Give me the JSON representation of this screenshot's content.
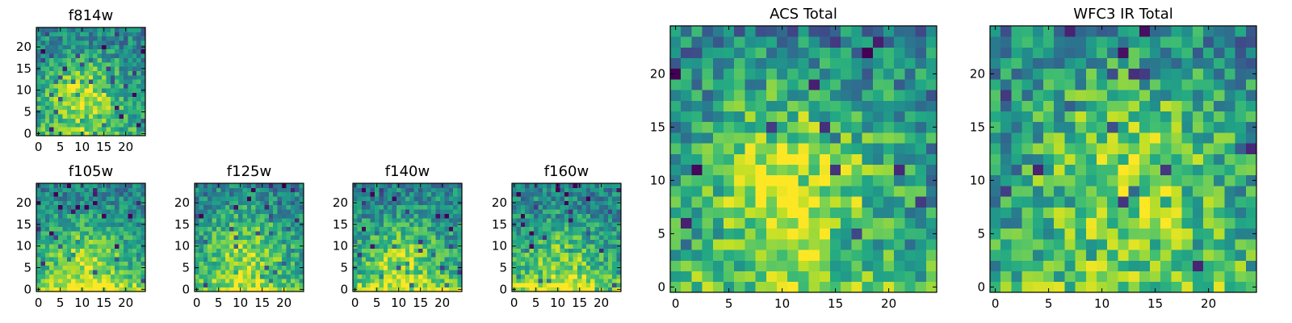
{
  "chart_data": [
    {
      "id": "f814w",
      "type": "heatmap",
      "title": "f814w",
      "grid_size": 25,
      "xticks": [
        0,
        5,
        10,
        15,
        20
      ],
      "yticks": [
        0,
        5,
        10,
        15,
        20
      ],
      "colormap": "viridis",
      "seed": 814,
      "center": [
        10,
        9
      ],
      "spread": 6,
      "peak": 0.42,
      "noise": 0.2,
      "bottom_boost": 0.1
    },
    {
      "id": "f105w",
      "type": "heatmap",
      "title": "f105w",
      "grid_size": 25,
      "xticks": [
        0,
        5,
        10,
        15,
        20
      ],
      "yticks": [
        0,
        5,
        10,
        15,
        20
      ],
      "colormap": "viridis",
      "seed": 105,
      "center": [
        11,
        6
      ],
      "spread": 7,
      "peak": 0.35,
      "noise": 0.18,
      "bottom_boost": 0.25
    },
    {
      "id": "f125w",
      "type": "heatmap",
      "title": "f125w",
      "grid_size": 25,
      "xticks": [
        0,
        5,
        10,
        15,
        20
      ],
      "yticks": [
        0,
        5,
        10,
        15,
        20
      ],
      "colormap": "viridis",
      "seed": 125,
      "center": [
        11,
        8
      ],
      "spread": 7,
      "peak": 0.33,
      "noise": 0.2,
      "bottom_boost": 0.2
    },
    {
      "id": "f140w",
      "type": "heatmap",
      "title": "f140w",
      "grid_size": 25,
      "xticks": [
        0,
        5,
        10,
        15,
        20
      ],
      "yticks": [
        0,
        5,
        10,
        15,
        20
      ],
      "colormap": "viridis",
      "seed": 140,
      "center": [
        11,
        6
      ],
      "spread": 7,
      "peak": 0.33,
      "noise": 0.2,
      "bottom_boost": 0.22
    },
    {
      "id": "f160w",
      "type": "heatmap",
      "title": "f160w",
      "grid_size": 25,
      "xticks": [
        0,
        5,
        10,
        15,
        20
      ],
      "yticks": [
        0,
        5,
        10,
        15,
        20
      ],
      "colormap": "viridis",
      "seed": 160,
      "center": [
        11,
        5
      ],
      "spread": 7,
      "peak": 0.3,
      "noise": 0.2,
      "bottom_boost": 0.25
    },
    {
      "id": "acs-total",
      "type": "heatmap",
      "title": "ACS Total",
      "grid_size": 25,
      "xticks": [
        0,
        5,
        10,
        15,
        20
      ],
      "yticks": [
        0,
        5,
        10,
        15,
        20
      ],
      "colormap": "viridis",
      "seed": 999,
      "center": [
        11,
        10
      ],
      "spread": 6,
      "peak": 0.42,
      "noise": 0.24,
      "bottom_boost": 0.12
    },
    {
      "id": "wfc3-ir-total",
      "type": "heatmap",
      "title": "WFC3 IR Total",
      "grid_size": 25,
      "xticks": [
        0,
        5,
        10,
        15,
        20
      ],
      "yticks": [
        0,
        5,
        10,
        15,
        20
      ],
      "colormap": "viridis",
      "seed": 333,
      "center": [
        13,
        11
      ],
      "spread": 7,
      "peak": 0.35,
      "noise": 0.24,
      "bottom_boost": 0.15
    }
  ]
}
